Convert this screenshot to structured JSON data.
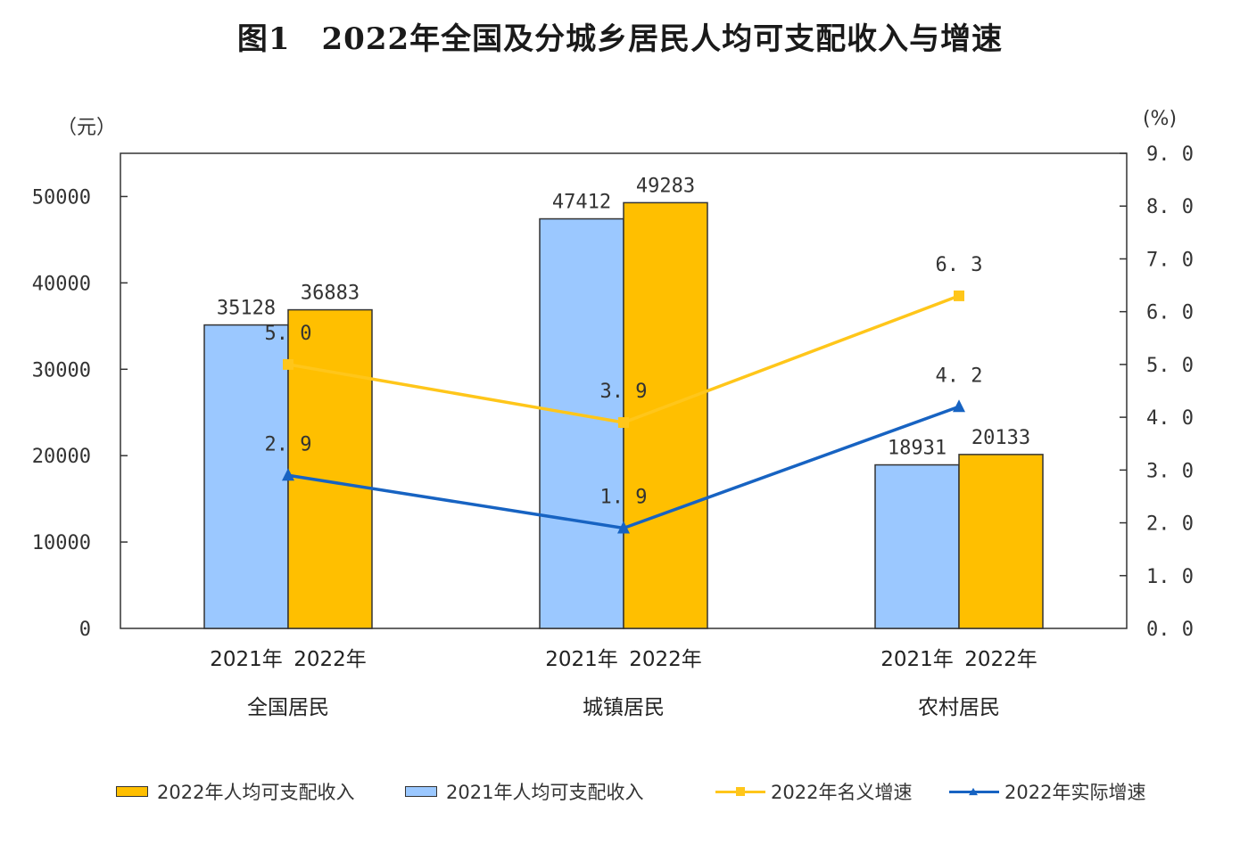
{
  "title": "图1　2022年全国及分城乡居民人均可支配收入与增速",
  "chart_data": {
    "type": "bar",
    "left_axis_unit": "（元）",
    "right_axis_unit": "(%)",
    "left_ticks": [
      "0",
      "10000",
      "20000",
      "30000",
      "40000",
      "50000"
    ],
    "right_ticks": [
      "0. 0",
      "1. 0",
      "2. 0",
      "3. 0",
      "4. 0",
      "5. 0",
      "6. 0",
      "7. 0",
      "8. 0",
      "9. 0"
    ],
    "ylim_left": [
      0,
      55000
    ],
    "ylim_right": [
      0,
      9.0
    ],
    "categories": [
      "全国居民",
      "城镇居民",
      "农村居民"
    ],
    "sub_categories": [
      "2021年",
      "2022年"
    ],
    "bar_series": [
      {
        "name": "2021年人均可支配收入",
        "color": "#9bc8ff",
        "values": [
          35128,
          47412,
          18931
        ]
      },
      {
        "name": "2022年人均可支配收入",
        "color": "#ffbf00",
        "values": [
          36883,
          49283,
          20133
        ]
      }
    ],
    "line_series": [
      {
        "name": "2022年名义增速",
        "color": "#ffc61a",
        "marker": "square",
        "values": [
          5.0,
          3.9,
          6.3
        ],
        "labels": [
          "5. 0",
          "3. 9",
          "6. 3"
        ]
      },
      {
        "name": "2022年实际增速",
        "color": "#1763c2",
        "marker": "triangle",
        "values": [
          2.9,
          1.9,
          4.2
        ],
        "labels": [
          "2. 9",
          "1. 9",
          "4. 2"
        ]
      }
    ],
    "legend": [
      {
        "name": "2022年人均可支配收入",
        "kind": "bar",
        "color": "#ffbf00"
      },
      {
        "name": "2021年人均可支配收入",
        "kind": "bar",
        "color": "#9bc8ff"
      },
      {
        "name": "2022年名义增速",
        "kind": "line",
        "color": "#ffc61a"
      },
      {
        "name": "2022年实际增速",
        "kind": "line",
        "color": "#1763c2"
      }
    ],
    "legend_position": "bottom",
    "grid": false
  }
}
